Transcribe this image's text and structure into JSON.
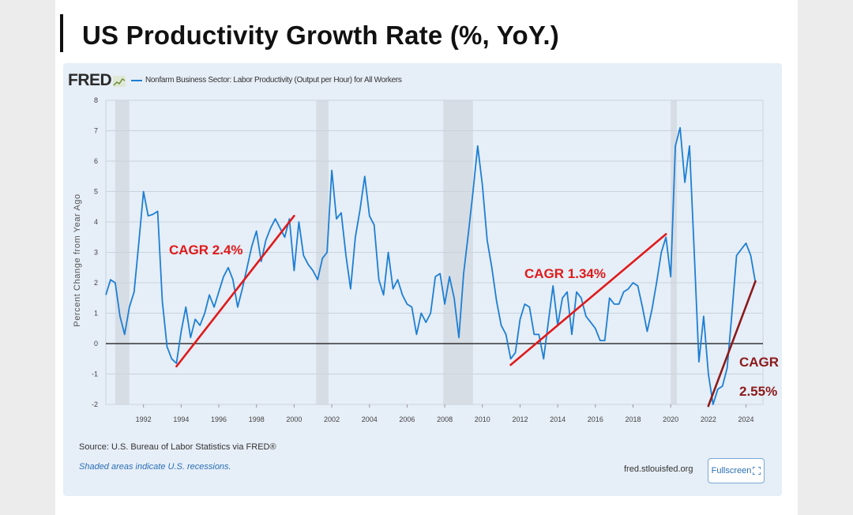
{
  "page": {
    "title": "US Productivity Growth Rate (%, YoY.)"
  },
  "fred": {
    "logo": "FRED",
    "legend_label": "Nonfarm Business Sector: Labor Productivity (Output per Hour) for All Workers",
    "series_color": "#1d7fd4",
    "source": "Source: U.S. Bureau of Labor Statistics via FRED®",
    "recessions_note": "Shaded areas indicate U.S. recessions.",
    "site": "fred.stlouisfed.org",
    "fullscreen_label": "Fullscreen",
    "fullscreen_icon": "expand-icon"
  },
  "chart_data": {
    "type": "line",
    "ylabel": "Percent Change from Year Ago",
    "ylim": [
      -2,
      8
    ],
    "y_ticks": [
      "-2",
      "-1",
      "0",
      "1",
      "2",
      "3",
      "4",
      "5",
      "6",
      "7",
      "8"
    ],
    "x_ticks": [
      "1992",
      "1994",
      "1996",
      "1998",
      "2000",
      "2002",
      "2004",
      "2006",
      "2008",
      "2010",
      "2012",
      "2014",
      "2016",
      "2018",
      "2020",
      "2022",
      "2024"
    ],
    "xlim": [
      1990.0,
      2024.9
    ],
    "grid": true,
    "legend_position": "top-left",
    "recessions": [
      {
        "start": "1990.5",
        "end": "1991.25"
      },
      {
        "start": "2001.17",
        "end": "2001.83"
      },
      {
        "start": "2007.92",
        "end": "2009.5"
      },
      {
        "start": "2020.0",
        "end": "2020.33"
      }
    ],
    "series": [
      {
        "name": "Nonfarm Business Sector: Labor Productivity (Output per Hour) for All Workers",
        "color": "#1d7fd4",
        "x": [
          1990.0,
          1990.25,
          1990.5,
          1990.75,
          1991.0,
          1991.25,
          1991.5,
          1991.75,
          1992.0,
          1992.25,
          1992.5,
          1992.75,
          1993.0,
          1993.25,
          1993.5,
          1993.75,
          1994.0,
          1994.25,
          1994.5,
          1994.75,
          1995.0,
          1995.25,
          1995.5,
          1995.75,
          1996.0,
          1996.25,
          1996.5,
          1996.75,
          1997.0,
          1997.25,
          1997.5,
          1997.75,
          1998.0,
          1998.25,
          1998.5,
          1998.75,
          1999.0,
          1999.25,
          1999.5,
          1999.75,
          2000.0,
          2000.25,
          2000.5,
          2000.75,
          2001.0,
          2001.25,
          2001.5,
          2001.75,
          2002.0,
          2002.25,
          2002.5,
          2002.75,
          2003.0,
          2003.25,
          2003.5,
          2003.75,
          2004.0,
          2004.25,
          2004.5,
          2004.75,
          2005.0,
          2005.25,
          2005.5,
          2005.75,
          2006.0,
          2006.25,
          2006.5,
          2006.75,
          2007.0,
          2007.25,
          2007.5,
          2007.75,
          2008.0,
          2008.25,
          2008.5,
          2008.75,
          2009.0,
          2009.25,
          2009.5,
          2009.75,
          2010.0,
          2010.25,
          2010.5,
          2010.75,
          2011.0,
          2011.25,
          2011.5,
          2011.75,
          2012.0,
          2012.25,
          2012.5,
          2012.75,
          2013.0,
          2013.25,
          2013.5,
          2013.75,
          2014.0,
          2014.25,
          2014.5,
          2014.75,
          2015.0,
          2015.25,
          2015.5,
          2015.75,
          2016.0,
          2016.25,
          2016.5,
          2016.75,
          2017.0,
          2017.25,
          2017.5,
          2017.75,
          2018.0,
          2018.25,
          2018.5,
          2018.75,
          2019.0,
          2019.25,
          2019.5,
          2019.75,
          2020.0,
          2020.25,
          2020.5,
          2020.75,
          2021.0,
          2021.25,
          2021.5,
          2021.75,
          2022.0,
          2022.25,
          2022.5,
          2022.75,
          2023.0,
          2023.25,
          2023.5,
          2023.75,
          2024.0,
          2024.25,
          2024.5
        ],
        "values": [
          1.6,
          2.1,
          2.0,
          0.9,
          0.3,
          1.2,
          1.7,
          3.3,
          5.0,
          4.2,
          4.25,
          4.35,
          1.4,
          -0.1,
          -0.5,
          -0.65,
          0.4,
          1.2,
          0.2,
          0.8,
          0.6,
          1.0,
          1.6,
          1.2,
          1.7,
          2.2,
          2.5,
          2.1,
          1.2,
          1.8,
          2.5,
          3.2,
          3.7,
          2.7,
          3.4,
          3.8,
          4.1,
          3.8,
          3.5,
          4.1,
          2.4,
          4.0,
          2.9,
          2.6,
          2.4,
          2.1,
          2.8,
          3.0,
          5.7,
          4.1,
          4.3,
          2.9,
          1.8,
          3.5,
          4.4,
          5.5,
          4.2,
          3.9,
          2.1,
          1.6,
          3.0,
          1.8,
          2.1,
          1.6,
          1.3,
          1.2,
          0.3,
          1.0,
          0.7,
          1.0,
          2.2,
          2.3,
          1.3,
          2.2,
          1.5,
          0.2,
          2.3,
          3.6,
          5.0,
          6.5,
          5.2,
          3.4,
          2.5,
          1.4,
          0.6,
          0.3,
          -0.5,
          -0.3,
          0.8,
          1.3,
          1.2,
          0.3,
          0.3,
          -0.5,
          0.7,
          1.9,
          0.6,
          1.5,
          1.7,
          0.3,
          1.7,
          1.5,
          0.9,
          0.7,
          0.5,
          0.1,
          0.1,
          1.5,
          1.3,
          1.3,
          1.7,
          1.8,
          2.0,
          1.9,
          1.2,
          0.4,
          1.1,
          2.0,
          3.0,
          3.5,
          2.2,
          6.5,
          7.1,
          5.3,
          6.5,
          3.0,
          -0.6,
          0.9,
          -1.0,
          -2.0,
          -1.5,
          -1.4,
          -0.8,
          1.0,
          2.9,
          3.1,
          3.3,
          2.9,
          2.0
        ]
      }
    ],
    "annotations": [
      {
        "label": "CAGR 2.4%",
        "color": "#e01a1a",
        "x0": 1993.75,
        "y0": -0.75,
        "x1": 2000.0,
        "y1": 4.2
      },
      {
        "label": "CAGR 1.34%",
        "color": "#e01a1a",
        "x0": 2011.5,
        "y0": -0.7,
        "x1": 2019.75,
        "y1": 3.6
      },
      {
        "label": "CAGR",
        "label2": "2.55%",
        "color": "#8b1a1a",
        "x0": 2022.0,
        "y0": -2.05,
        "x1": 2024.5,
        "y1": 2.05
      }
    ]
  }
}
